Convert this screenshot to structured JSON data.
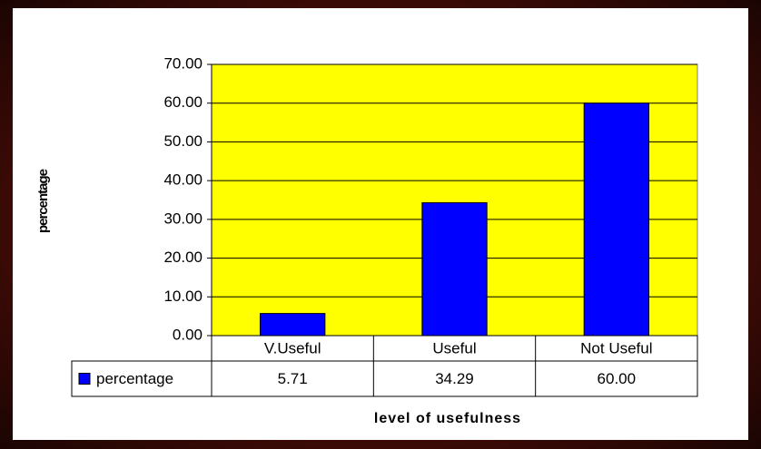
{
  "chart_data": {
    "type": "bar",
    "y_label": "percentage",
    "x_label": "level of usefulness",
    "categories": [
      "V.Useful",
      "Useful",
      "Not Useful"
    ],
    "series": [
      {
        "name": "percentage",
        "color": "#0000ff",
        "values": [
          5.71,
          34.29,
          60
        ],
        "value_labels": [
          "5.71",
          "34.29",
          "60.00"
        ]
      }
    ],
    "ylim": [
      0,
      70
    ],
    "yticks": [
      {
        "value": 0,
        "label": "0.00"
      },
      {
        "value": 10,
        "label": "10.00"
      },
      {
        "value": 20,
        "label": "20.00"
      },
      {
        "value": 30,
        "label": "30.00"
      },
      {
        "value": 40,
        "label": "40.00"
      },
      {
        "value": 50,
        "label": "50.00"
      },
      {
        "value": 60,
        "label": "60.00"
      },
      {
        "value": 70,
        "label": "70.00"
      }
    ],
    "grid": true,
    "plot_background": "#ffff00",
    "data_table": true
  }
}
